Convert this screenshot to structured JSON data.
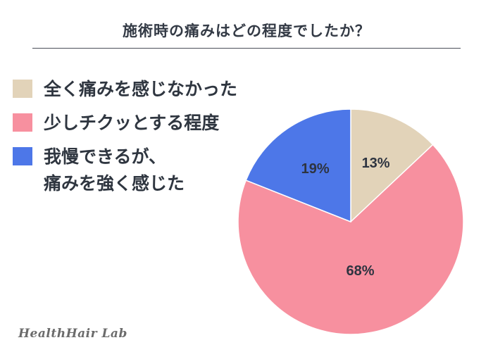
{
  "chart_data": {
    "type": "pie",
    "title": "施術時の痛みはどの程度でしたか？",
    "start_angle_deg": 0,
    "direction": "clockwise",
    "legend_position": "left",
    "slices": [
      {
        "label": "全く痛みを感じなかった",
        "value": 13,
        "display": "13%",
        "color": "#e2d3b9"
      },
      {
        "label": "少しチクッとする程度",
        "value": 68,
        "display": "68%",
        "color": "#f7909f"
      },
      {
        "label": "我慢できるが、\n痛みを強く感じた",
        "value": 19,
        "display": "19%",
        "color": "#4d77e8"
      }
    ]
  },
  "brand": "HealthHair Lab"
}
